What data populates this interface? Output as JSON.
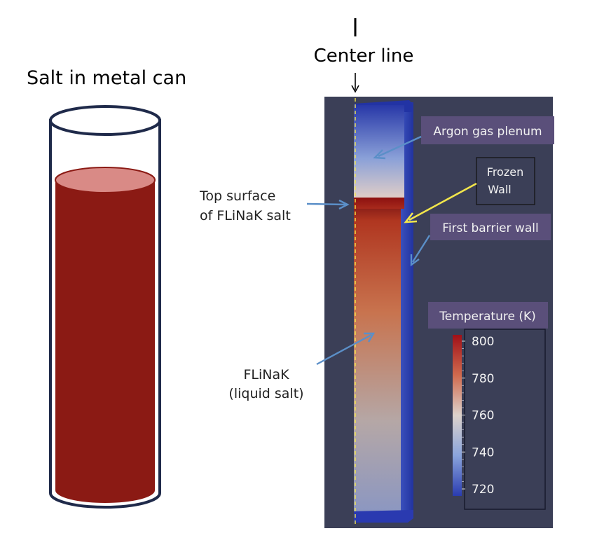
{
  "left_panel": {
    "title": "Salt in metal can"
  },
  "center_line": {
    "label": "Center line"
  },
  "annotations": {
    "top_surface_line1": "Top surface",
    "top_surface_line2": "of FLiNaK salt",
    "flinak_line1": "FLiNaK",
    "flinak_line2": "(liquid salt)",
    "argon": "Argon gas plenum",
    "frozen_line1": "Frozen",
    "frozen_line2": "Wall",
    "first_barrier": "First barrier wall"
  },
  "colorbar": {
    "title": "Temperature (K)",
    "ticks": [
      "800",
      "780",
      "760",
      "740",
      "720"
    ],
    "colors": {
      "hot": "#a01018",
      "mid": "#dcdcdc",
      "cold": "#2a3cb0"
    }
  },
  "colors": {
    "salt": "#8b1a14",
    "salt_surface": "#d98a86",
    "can_outline": "#1f2a4a",
    "sim_background": "#3b3f57",
    "label_box": "#5a4f7a",
    "frozen_arrow": "#f2e64b",
    "blue_arrow": "#5b8fc8"
  }
}
